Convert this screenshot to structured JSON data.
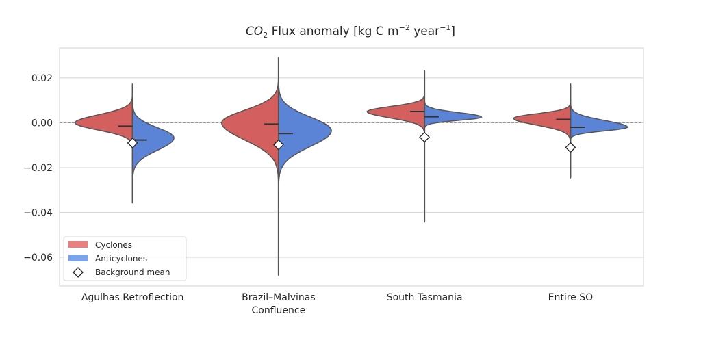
{
  "chart_data": {
    "type": "violin",
    "title_parts": {
      "species": "CO",
      "subscript": "2",
      "rest": " Flux anomaly [kg C m",
      "exp1": "−2",
      "mid": " year",
      "exp2": "−1",
      "end": "]"
    },
    "title": "CO2 Flux anomaly [kg C m^-2 year^-1]",
    "xlabel": "",
    "ylabel": "",
    "ylim": [
      -0.0728,
      0.0334
    ],
    "yticks": [
      0.02,
      0.0,
      -0.02,
      -0.04,
      -0.06
    ],
    "ytick_labels": [
      "0.02",
      "0.00",
      "−0.02",
      "−0.04",
      "−0.06"
    ],
    "grid": true,
    "zero_line": 0.0,
    "categories": [
      {
        "label_lines": [
          "Agulhas Retroflection"
        ],
        "min": -0.0355,
        "max": 0.017,
        "background_mean": -0.009,
        "cyclones": {
          "peak": 0.0,
          "width": 1.0,
          "sd_up": 0.0035,
          "sd_down": 0.0032,
          "mean": -0.0015
        },
        "anticyclones": {
          "peak": -0.0067,
          "width": 0.72,
          "sd_up": 0.0045,
          "sd_down": 0.0055,
          "mean": -0.0077
        }
      },
      {
        "label_lines": [
          "Brazil–Malvinas",
          "Confluence"
        ],
        "min": -0.068,
        "max": 0.029,
        "background_mean": -0.0098,
        "cyclones": {
          "peak": 0.0,
          "width": 0.99,
          "sd_up": 0.0055,
          "sd_down": 0.0075,
          "mean": -0.0006
        },
        "anticyclones": {
          "peak": -0.0035,
          "width": 0.92,
          "sd_up": 0.006,
          "sd_down": 0.007,
          "mean": -0.0048
        }
      },
      {
        "label_lines": [
          "South Tasmania"
        ],
        "min": -0.044,
        "max": 0.023,
        "background_mean": -0.0064,
        "cyclones": {
          "peak": 0.005,
          "width": 1.0,
          "sd_up": 0.0022,
          "sd_down": 0.0028,
          "mean": 0.005
        },
        "anticyclones": {
          "peak": 0.0025,
          "width": 1.0,
          "sd_up": 0.002,
          "sd_down": 0.0014,
          "mean": 0.0027
        }
      },
      {
        "label_lines": [
          "Entire SO"
        ],
        "min": -0.0245,
        "max": 0.017,
        "background_mean": -0.011,
        "cyclones": {
          "peak": 0.002,
          "width": 0.99,
          "sd_up": 0.002,
          "sd_down": 0.003,
          "mean": 0.0015
        },
        "anticyclones": {
          "peak": -0.002,
          "width": 0.99,
          "sd_up": 0.003,
          "sd_down": 0.0016,
          "mean": -0.002
        }
      }
    ],
    "legend": {
      "placement": "lower-left",
      "entries": [
        "Cyclones",
        "Anticyclones",
        "Background mean"
      ]
    },
    "colors": {
      "cyclones": "#d45f5f",
      "anticyclones": "#5b84d6",
      "cyclones_legend": "#ea7f7f",
      "anticyclones_legend": "#7aa3ea",
      "outline": "#555555"
    }
  }
}
